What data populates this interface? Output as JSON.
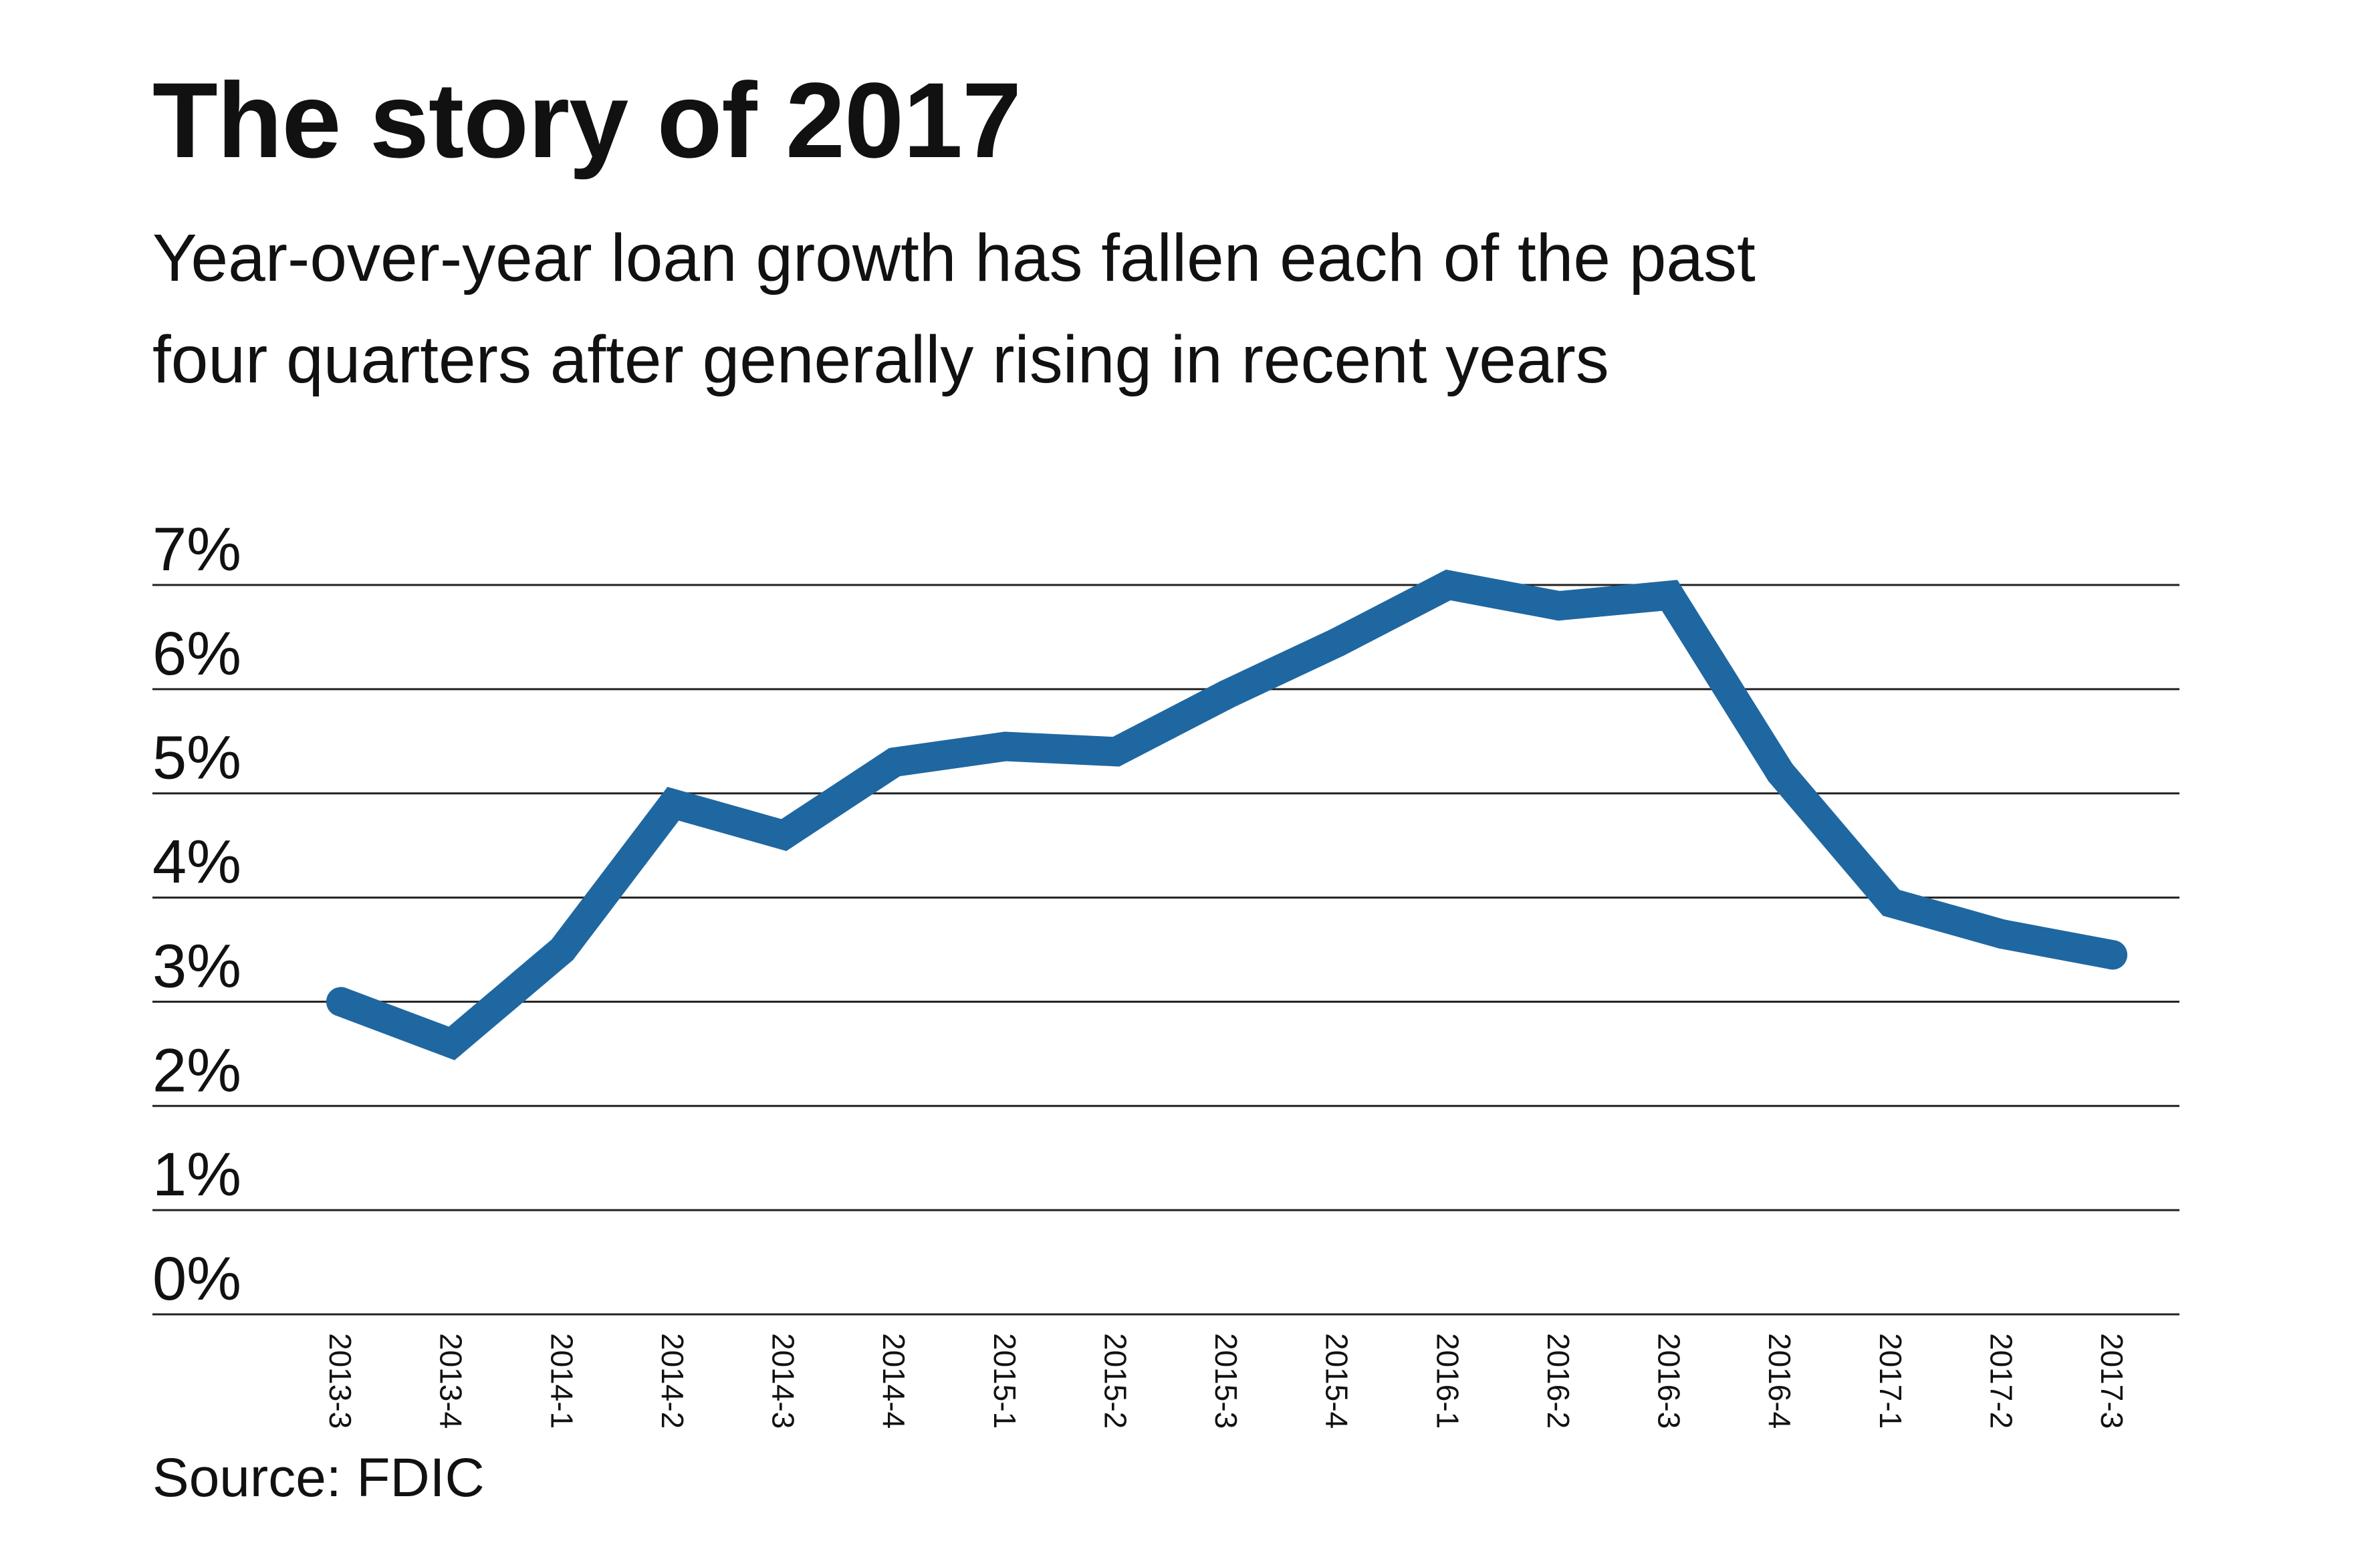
{
  "header": {
    "title": "The story of 2017",
    "subtitle_line1": "Year-over-year loan growth has fallen each of the past",
    "subtitle_line2": "four quarters after generally rising in recent years"
  },
  "footer": {
    "source": "Source: FDIC"
  },
  "colors": {
    "line": "#1f67a1",
    "grid": "#222222",
    "text": "#111111"
  },
  "chart_data": {
    "type": "line",
    "title": "The story of 2017",
    "subtitle": "Year-over-year loan growth has fallen each of the past four quarters after generally rising in recent years",
    "xlabel": "",
    "ylabel": "",
    "x": [
      "2013-3",
      "2013-4",
      "2014-1",
      "2014-2",
      "2014-3",
      "2014-4",
      "2015-1",
      "2015-2",
      "2015-3",
      "2015-4",
      "2016-1",
      "2016-2",
      "2016-3",
      "2016-4",
      "2017-1",
      "2017-2",
      "2017-3"
    ],
    "series": [
      {
        "name": "",
        "values": [
          3.0,
          2.6,
          3.5,
          4.9,
          4.6,
          5.3,
          5.45,
          5.4,
          5.95,
          6.45,
          7.0,
          6.8,
          6.9,
          5.2,
          3.95,
          3.65,
          3.45
        ]
      }
    ],
    "y_ticks": [
      0,
      1,
      2,
      3,
      4,
      5,
      6,
      7
    ],
    "y_tick_labels": [
      "0%",
      "1%",
      "2%",
      "3%",
      "4%",
      "5%",
      "6%",
      "7%"
    ],
    "ylim": [
      0,
      7
    ],
    "grid": true,
    "legend": "none",
    "x_tick_rotation": "vertical"
  }
}
